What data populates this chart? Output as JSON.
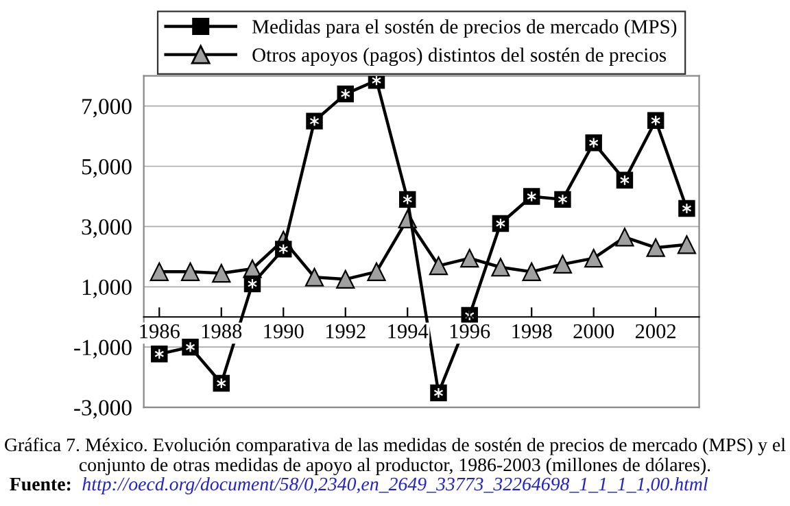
{
  "chart_data": {
    "type": "line",
    "x": [
      1986,
      1987,
      1988,
      1989,
      1990,
      1991,
      1992,
      1993,
      1994,
      1995,
      1996,
      1997,
      1998,
      1999,
      2000,
      2001,
      2002,
      2003
    ],
    "series": [
      {
        "name": "Medidas para el sostén de precios de mercado (MPS)",
        "color": "#000000",
        "marker": "square",
        "values": [
          -1230,
          -1000,
          -2200,
          1100,
          2250,
          6500,
          7400,
          7850,
          3900,
          -2520,
          50,
          3100,
          4000,
          3900,
          5780,
          4540,
          6520,
          3600
        ]
      },
      {
        "name": "Otros apoyos (pagos) distintos del sostén de precios",
        "color": "#000000",
        "marker": "triangle",
        "values": [
          1500,
          1500,
          1450,
          1600,
          2550,
          1320,
          1250,
          1500,
          3250,
          1700,
          1950,
          1650,
          1500,
          1750,
          1950,
          2650,
          2300,
          2400
        ]
      }
    ],
    "xlim": [
      1985.5,
      2003.4
    ],
    "xticks": [
      1986,
      1988,
      1990,
      1992,
      1994,
      1996,
      1998,
      2000,
      2002
    ],
    "ylim": [
      -3000,
      8000
    ],
    "yticks": [
      {
        "value": -3000,
        "label": "-3,000"
      },
      {
        "value": -1000,
        "label": "-1,000"
      },
      {
        "value": 1000,
        "label": "1,000"
      },
      {
        "value": 3000,
        "label": "3,000"
      },
      {
        "value": 5000,
        "label": "5,000"
      },
      {
        "value": 7000,
        "label": "7,000"
      }
    ],
    "grid": "y",
    "legend": "top",
    "line_style": "solid",
    "annotations": [
      "Gráfica 7. México. Evolución comparativa de las medidas de sostén de precios de mercado (MPS) y el conjunto de otras medidas de apoyo al productor, 1986-2003 (millones de dólares).",
      "Fuente:",
      "http://oecd.org/document/58/0,2340,en_2649_33773_32264698_1_1_1_1,00.html"
    ]
  }
}
